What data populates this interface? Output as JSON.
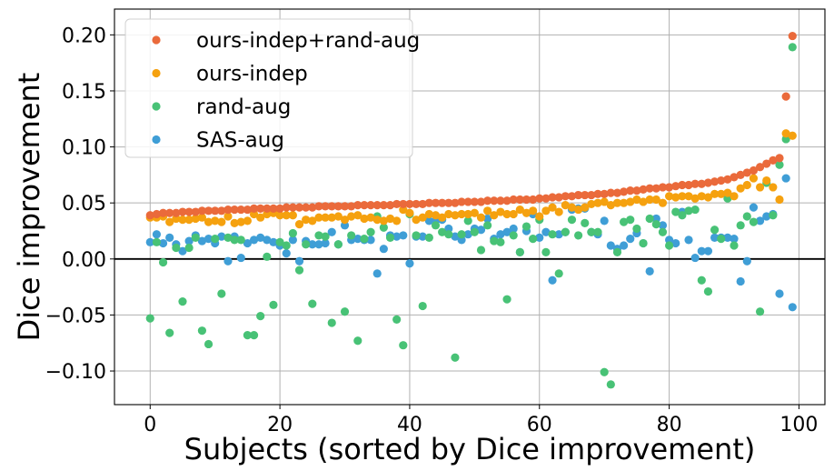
{
  "chart_data": {
    "type": "scatter",
    "title": "",
    "xlabel": "Subjects (sorted by Dice improvement)",
    "ylabel": "Dice improvement",
    "xlim": [
      -5.5,
      104
    ],
    "ylim": [
      -0.13,
      0.223
    ],
    "xticks": [
      0,
      20,
      40,
      60,
      80,
      100
    ],
    "xtick_labels": [
      "0",
      "20",
      "40",
      "60",
      "80",
      "100"
    ],
    "yticks": [
      -0.1,
      -0.05,
      0.0,
      0.05,
      0.1,
      0.15,
      0.2
    ],
    "ytick_labels": [
      "−0.10",
      "−0.05",
      "0.00",
      "0.05",
      "0.10",
      "0.15",
      "0.20"
    ],
    "grid": true,
    "zero_line": true,
    "legend_position": "top-left",
    "x": [
      0,
      1,
      2,
      3,
      4,
      5,
      6,
      7,
      8,
      9,
      10,
      11,
      12,
      13,
      14,
      15,
      16,
      17,
      18,
      19,
      20,
      21,
      22,
      23,
      24,
      25,
      26,
      27,
      28,
      29,
      30,
      31,
      32,
      33,
      34,
      35,
      36,
      37,
      38,
      39,
      40,
      41,
      42,
      43,
      44,
      45,
      46,
      47,
      48,
      49,
      50,
      51,
      52,
      53,
      54,
      55,
      56,
      57,
      58,
      59,
      60,
      61,
      62,
      63,
      64,
      65,
      66,
      67,
      68,
      69,
      70,
      71,
      72,
      73,
      74,
      75,
      76,
      77,
      78,
      79,
      80,
      81,
      82,
      83,
      84,
      85,
      86,
      87,
      88,
      89,
      90,
      91,
      92,
      93,
      94,
      95,
      96,
      97,
      98,
      99
    ],
    "series": [
      {
        "name": "ours-indep+rand-aug",
        "color": "#ea6a3b",
        "values": [
          0.039,
          0.04,
          0.041,
          0.041,
          0.041,
          0.042,
          0.042,
          0.042,
          0.043,
          0.043,
          0.043,
          0.043,
          0.044,
          0.044,
          0.044,
          0.044,
          0.045,
          0.045,
          0.045,
          0.045,
          0.045,
          0.046,
          0.046,
          0.046,
          0.046,
          0.046,
          0.047,
          0.047,
          0.047,
          0.047,
          0.047,
          0.047,
          0.048,
          0.048,
          0.048,
          0.048,
          0.048,
          0.048,
          0.049,
          0.049,
          0.049,
          0.049,
          0.049,
          0.05,
          0.05,
          0.05,
          0.05,
          0.05,
          0.051,
          0.051,
          0.051,
          0.051,
          0.052,
          0.052,
          0.052,
          0.052,
          0.053,
          0.053,
          0.053,
          0.053,
          0.054,
          0.054,
          0.055,
          0.055,
          0.056,
          0.056,
          0.057,
          0.057,
          0.057,
          0.058,
          0.058,
          0.059,
          0.059,
          0.06,
          0.061,
          0.061,
          0.062,
          0.063,
          0.063,
          0.064,
          0.064,
          0.065,
          0.066,
          0.066,
          0.067,
          0.067,
          0.068,
          0.069,
          0.07,
          0.071,
          0.073,
          0.075,
          0.077,
          0.079,
          0.082,
          0.085,
          0.088,
          0.09,
          0.145,
          0.199
        ]
      },
      {
        "name": "ours-indep",
        "color": "#f5a10f",
        "values": [
          0.037,
          0.037,
          0.038,
          0.033,
          0.036,
          0.035,
          0.035,
          0.036,
          0.037,
          0.033,
          0.034,
          0.033,
          0.038,
          0.032,
          0.033,
          0.034,
          0.04,
          0.037,
          0.04,
          0.041,
          0.039,
          0.039,
          0.039,
          0.031,
          0.035,
          0.034,
          0.037,
          0.037,
          0.037,
          0.038,
          0.035,
          0.038,
          0.039,
          0.036,
          0.037,
          0.035,
          0.034,
          0.036,
          0.034,
          0.044,
          0.041,
          0.035,
          0.037,
          0.04,
          0.039,
          0.037,
          0.04,
          0.039,
          0.04,
          0.04,
          0.041,
          0.037,
          0.043,
          0.039,
          0.042,
          0.04,
          0.04,
          0.044,
          0.041,
          0.043,
          0.038,
          0.043,
          0.046,
          0.042,
          0.048,
          0.046,
          0.044,
          0.046,
          0.049,
          0.05,
          0.051,
          0.048,
          0.05,
          0.05,
          0.051,
          0.053,
          0.051,
          0.053,
          0.053,
          0.05,
          0.056,
          0.055,
          0.056,
          0.056,
          0.054,
          0.056,
          0.055,
          0.058,
          0.058,
          0.059,
          0.056,
          0.063,
          0.066,
          0.072,
          0.064,
          0.07,
          0.064,
          0.053,
          0.112,
          0.11
        ]
      },
      {
        "name": "rand-aug",
        "color": "#48c276",
        "values": [
          -0.053,
          0.015,
          -0.003,
          -0.066,
          0.01,
          -0.038,
          0.01,
          0.019,
          -0.064,
          -0.076,
          0.018,
          -0.031,
          0.019,
          0.017,
          0.017,
          -0.068,
          -0.068,
          -0.051,
          0.002,
          -0.041,
          0.015,
          0.012,
          0.023,
          -0.01,
          0.013,
          -0.04,
          0.021,
          0.02,
          -0.057,
          0.013,
          -0.047,
          0.021,
          -0.073,
          0.018,
          0.024,
          0.038,
          0.028,
          0.019,
          -0.054,
          -0.077,
          0.04,
          0.021,
          -0.042,
          0.019,
          0.03,
          0.024,
          0.022,
          -0.088,
          0.022,
          0.034,
          0.024,
          0.008,
          0.03,
          0.016,
          0.015,
          -0.036,
          0.021,
          0.006,
          0.029,
          0.018,
          0.035,
          0.006,
          0.022,
          -0.013,
          0.024,
          0.035,
          0.021,
          0.032,
          0.024,
          0.024,
          -0.101,
          -0.112,
          0.006,
          0.033,
          0.035,
          0.027,
          0.014,
          0.036,
          0.031,
          0.024,
          0.012,
          0.042,
          0.039,
          0.043,
          0.044,
          -0.019,
          -0.029,
          0.026,
          0.018,
          0.054,
          0.012,
          0.03,
          0.038,
          0.033,
          -0.047,
          0.068,
          0.039,
          0.084,
          0.107,
          0.189
        ]
      },
      {
        "name": "SAS-aug",
        "color": "#3f9ed6",
        "values": [
          0.015,
          0.022,
          0.014,
          0.019,
          0.013,
          0.007,
          0.016,
          0.021,
          0.016,
          0.018,
          0.014,
          0.02,
          -0.002,
          0.02,
          0.001,
          0.014,
          0.017,
          0.019,
          0.017,
          0.015,
          0.012,
          0.005,
          0.017,
          -0.002,
          0.016,
          0.013,
          0.013,
          0.014,
          0.024,
          0.013,
          0.03,
          0.017,
          0.018,
          0.017,
          0.017,
          -0.013,
          0.009,
          0.021,
          0.02,
          0.021,
          -0.004,
          0.02,
          0.02,
          0.034,
          0.034,
          0.035,
          0.027,
          0.02,
          0.017,
          0.022,
          0.027,
          0.026,
          0.036,
          0.018,
          0.022,
          0.024,
          0.027,
          0.006,
          0.025,
          0.04,
          0.019,
          0.024,
          -0.019,
          0.022,
          0.024,
          0.044,
          0.045,
          0.045,
          0.024,
          0.022,
          0.034,
          0.012,
          0.009,
          0.012,
          0.018,
          0.023,
          0.014,
          -0.011,
          0.036,
          0.03,
          0.017,
          0.014,
          0.042,
          0.017,
          0.001,
          0.007,
          0.007,
          0.019,
          0.019,
          0.019,
          0.018,
          -0.02,
          -0.002,
          0.046,
          0.034,
          0.038,
          0.04,
          -0.031,
          0.072,
          -0.043
        ]
      }
    ]
  }
}
